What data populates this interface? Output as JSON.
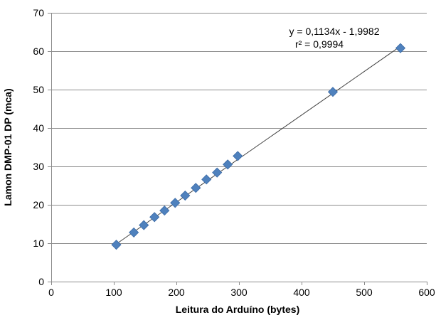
{
  "chart_data": {
    "type": "scatter",
    "xlabel": "Leitura do Arduíno (bytes)",
    "ylabel": "Lamon DMP-01 DP (mca)",
    "xlim": [
      0,
      600
    ],
    "ylim": [
      0,
      70
    ],
    "xticks": [
      0,
      100,
      200,
      300,
      400,
      500,
      600
    ],
    "yticks": [
      0,
      10,
      20,
      30,
      40,
      50,
      60,
      70
    ],
    "xtick_labels": [
      "0",
      "100",
      "200",
      "300",
      "400",
      "500",
      "600"
    ],
    "ytick_labels": [
      "0",
      "10",
      "20",
      "30",
      "40",
      "50",
      "60",
      "70"
    ],
    "grid": "horizontal",
    "series": [
      {
        "marker": "diamond",
        "color": "#4F81BD",
        "x": [
          104,
          132,
          148,
          165,
          181,
          198,
          214,
          231,
          248,
          265,
          282,
          298,
          450,
          558
        ],
        "y": [
          9.6,
          12.8,
          14.7,
          16.8,
          18.5,
          20.5,
          22.4,
          24.4,
          26.6,
          28.4,
          30.5,
          32.7,
          49.4,
          60.8
        ]
      }
    ],
    "trendline": {
      "slope": 0.1134,
      "intercept": -1.9982,
      "x_range": [
        104,
        558
      ],
      "color": "#404040",
      "equation_text": "y = 0,1134x - 1,9982",
      "r2_text": "r² = 0,9994"
    }
  }
}
